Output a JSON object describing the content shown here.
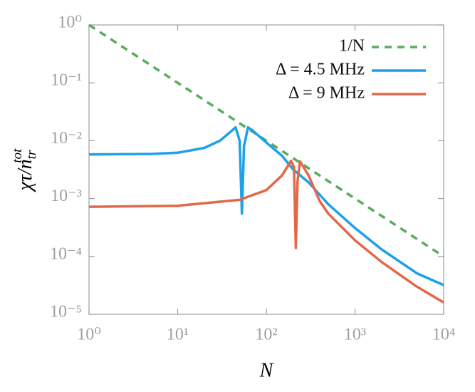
{
  "chart_data": {
    "type": "line",
    "xlabel": "N",
    "ylabel": "χτ/n",
    "ylabel_sub": "tr",
    "ylabel_sup": "tot",
    "xscale": "log",
    "yscale": "log",
    "xlim": [
      1,
      10000
    ],
    "ylim": [
      1e-05,
      1
    ],
    "xticks": [
      {
        "value": 1,
        "label": "10⁰"
      },
      {
        "value": 10,
        "label": "10¹"
      },
      {
        "value": 100,
        "label": "10²"
      },
      {
        "value": 1000,
        "label": "10³"
      },
      {
        "value": 10000,
        "label": "10⁴"
      }
    ],
    "yticks": [
      {
        "value": 1e-05,
        "label": "10⁻⁵"
      },
      {
        "value": 0.0001,
        "label": "10⁻⁴"
      },
      {
        "value": 0.001,
        "label": "10⁻³"
      },
      {
        "value": 0.01,
        "label": "10⁻²"
      },
      {
        "value": 0.1,
        "label": "10⁻¹"
      },
      {
        "value": 1,
        "label": "10⁰"
      }
    ],
    "legend": "upper right",
    "series": [
      {
        "name": "1/N",
        "color": "#5aab5a",
        "dashed": true,
        "x": [
          1,
          10000
        ],
        "values": [
          1,
          0.0001
        ]
      },
      {
        "name": "Δ = 4.5 MHz",
        "color": "#1ea1e8",
        "dashed": false,
        "x": [
          1,
          5,
          10,
          20,
          30,
          40,
          45,
          50,
          53,
          56,
          62,
          70,
          100,
          150,
          200,
          300,
          500,
          1000,
          2000,
          5000,
          10000
        ],
        "values": [
          0.0058,
          0.0059,
          0.0062,
          0.0075,
          0.01,
          0.0145,
          0.017,
          0.01,
          0.00055,
          0.008,
          0.017,
          0.015,
          0.0093,
          0.0055,
          0.0032,
          0.0019,
          0.0008,
          0.00031,
          0.000132,
          5.1e-05,
          3.2e-05
        ]
      },
      {
        "name": "Δ = 9 MHz",
        "color": "#e0694a",
        "dashed": false,
        "x": [
          1,
          10,
          50,
          100,
          150,
          190,
          205,
          215,
          225,
          240,
          300,
          400,
          500,
          1000,
          2000,
          5000,
          10000
        ],
        "values": [
          0.00072,
          0.00075,
          0.00095,
          0.0014,
          0.0025,
          0.0045,
          0.0035,
          0.00014,
          0.002,
          0.0044,
          0.0025,
          0.0009,
          0.00055,
          0.00019,
          8e-05,
          3e-05,
          1.6e-05
        ]
      }
    ]
  }
}
